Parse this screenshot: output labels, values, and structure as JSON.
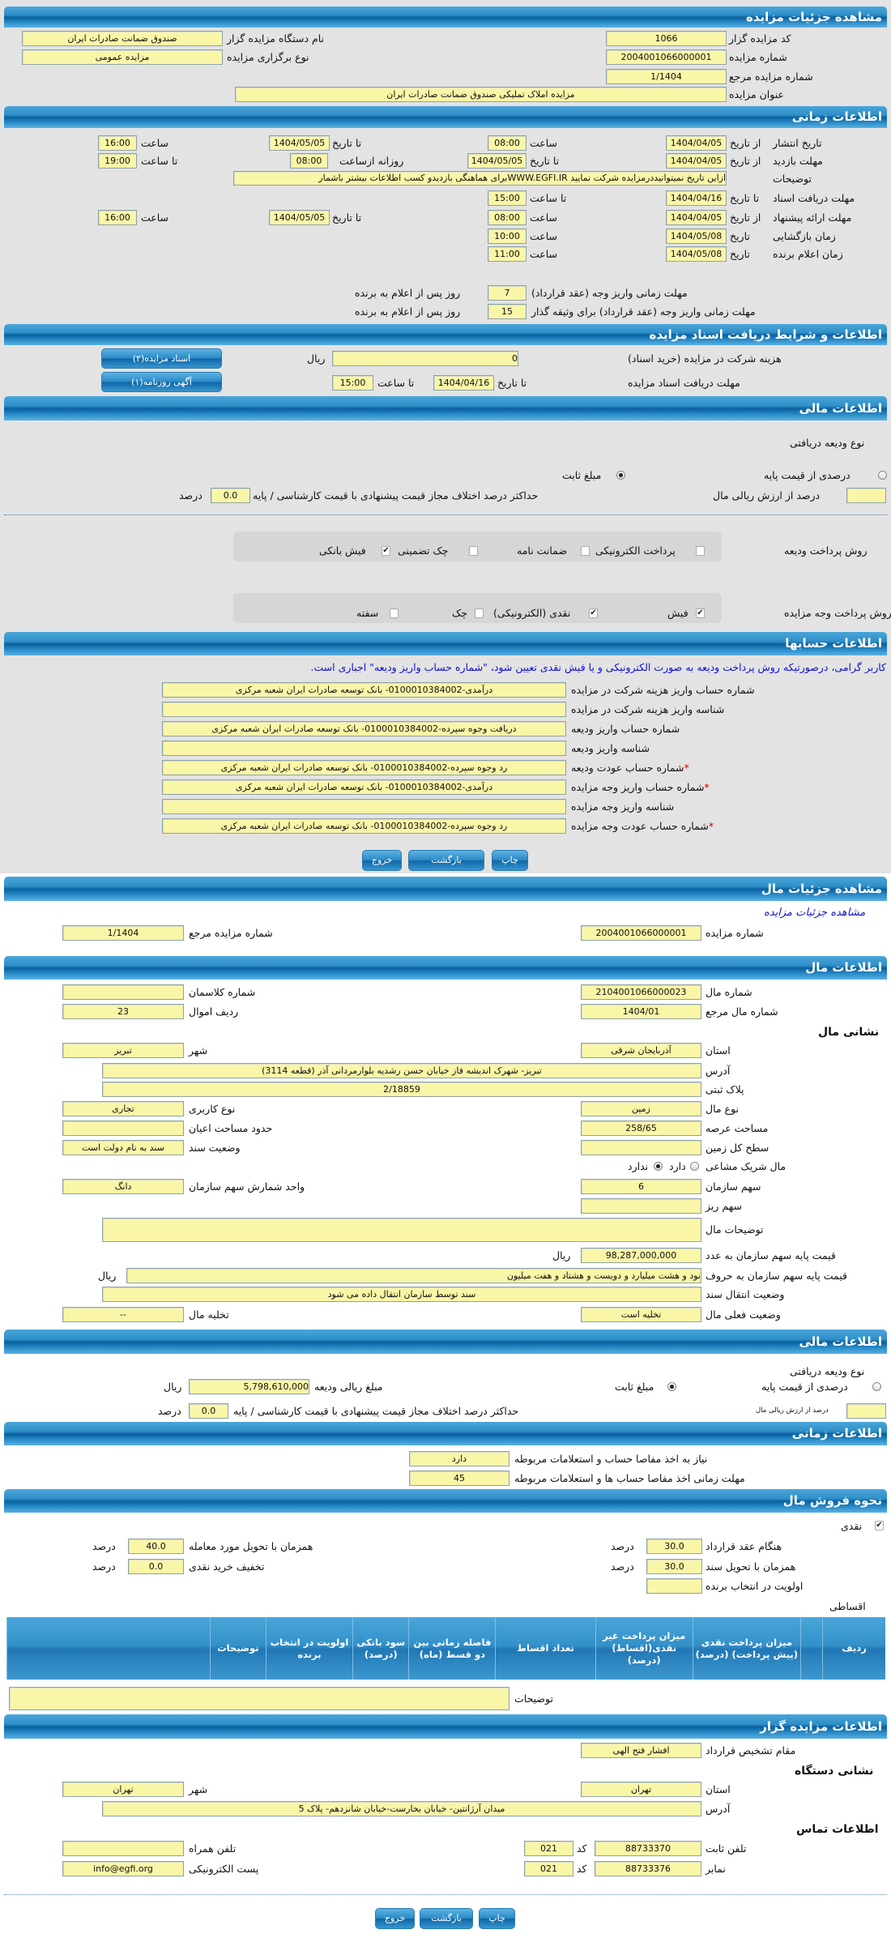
{
  "colors": {
    "header_blue": "#1f7fbf",
    "field_yellow": "#faf6a8",
    "notice_blue": "#1010d0",
    "required_red": "#d00000"
  },
  "auction": {
    "title": "مشاهده جزئیات مزایده",
    "code": {
      "label": "کد مزایده گزار",
      "value": "1066"
    },
    "org_name": {
      "label": "نام دستگاه مزایده گزار",
      "value": "صندوق ضمانت صادرات ایران"
    },
    "number": {
      "label": "شماره مزایده",
      "value": "2004001066000001"
    },
    "type": {
      "label": "نوع برگزاری مزایده",
      "value": "مزایده عمومی"
    },
    "ref_number": {
      "label": "شماره مزایده مرجع",
      "value": "1/1404"
    },
    "subject": {
      "label": "عنوان مزایده",
      "value": "مزایده املاک تملیکی صندوق ضمانت صادرات ایران"
    }
  },
  "timing": {
    "title": "اطلاعات زمانی",
    "words": {
      "from_date": "از تاریخ",
      "to_date": "تا تاریخ",
      "time": "ساعت",
      "to_time": "تا ساعت",
      "date": "تاریخ",
      "daily_from": "روزانه ازساعت"
    },
    "publish": {
      "label": "تاریخ انتشار",
      "from": "1404/04/05",
      "from_time": "08:00",
      "to": "1404/05/05",
      "to_time": "16:00"
    },
    "visit": {
      "label": "مهلت بازدید",
      "from": "1404/04/05",
      "to": "1404/05/05",
      "daily_from": "08:00",
      "to_time": "19:00"
    },
    "notes": {
      "label": "توضیحات",
      "value": "ازاین تاریخ نمیتوانیددرمزایده شرکت نمایید WWW.EGFI.IRبرای هماهنگی بازدیدو کسب اطلاعات بیشتر باشمار"
    },
    "docs": {
      "label": "مهلت دریافت اسناد",
      "to": "1404/04/16",
      "to_time": "15:00"
    },
    "offer": {
      "label": "مهلت ارائه پیشنهاد",
      "from": "1404/04/05",
      "from_time": "08:00",
      "to": "1404/05/05",
      "to_time": "16:00"
    },
    "opening": {
      "label": "زمان بازگشایی",
      "date": "1404/05/08",
      "time": "10:00"
    },
    "winner": {
      "label": "زمان اعلام برنده",
      "date": "1404/05/08",
      "time": "11:00"
    },
    "pay_deadline": {
      "label": "مهلت زمانی واریز وجه (عقد قرارداد)",
      "value": "7",
      "suffix": "روز پس از اعلام به برنده"
    },
    "pay_deadline_collateral": {
      "label": "مهلت زمانی واریز وجه (عقد قرارداد) برای وثیقه گذار",
      "value": "15",
      "suffix": "روز پس از اعلام به برنده"
    }
  },
  "docs_terms": {
    "title": "اطلاعات و شرایط دریافت اسناد مزایده",
    "fee": {
      "label": "هزینه شرکت در مزایده (خرید اسناد)",
      "value": "0",
      "unit": "ریال"
    },
    "deadline": {
      "label": "مهلت دریافت اسناد مزایده",
      "to_date_label": "تا تاریخ",
      "to_date": "1404/04/16",
      "to_time_label": "تا ساعت",
      "to_time": "15:00"
    },
    "docs_button": "اسناد مزایده(۲)",
    "ad_button": "آگهی روزنامه(۱)"
  },
  "finance": {
    "title": "اطلاعات مالی",
    "deposit_type_label": "نوع ودیعه دریافتی",
    "percent_option": {
      "label": "درصدی از قیمت پایه",
      "selected": false
    },
    "fixed_option": {
      "label": "مبلغ ثابت",
      "selected": true
    },
    "percent_of_value": {
      "label": "درصد از ارزش ریالی مال",
      "value": ""
    },
    "max_diff": {
      "label": "حداکثر درصد اختلاف مجاز قیمت پیشنهادی با قیمت کارشناسی / پایه",
      "value": "0.0",
      "unit": "درصد"
    },
    "deposit_method": {
      "label": "روش پرداخت ودیعه",
      "options": [
        {
          "label": "پرداخت الکترونیکی",
          "checked": false
        },
        {
          "label": "ضمانت نامه",
          "checked": false
        },
        {
          "label": "چک تضمینی",
          "checked": false
        },
        {
          "label": "فیش بانکی",
          "checked": true
        }
      ]
    },
    "payment_method": {
      "label": "روش پرداخت وجه مزایده",
      "options": [
        {
          "label": "فیش",
          "checked": true
        },
        {
          "label": "نقدی (الکترونیکی)",
          "checked": true
        },
        {
          "label": "چک",
          "checked": false
        },
        {
          "label": "سفته",
          "checked": false
        }
      ]
    }
  },
  "accounts": {
    "title": "اطلاعات حسابها",
    "notice": "کاربر گرامی، درصورتیکه روش پرداخت ودیعه به صورت الکترونیکی و یا فیش نقدی تعیین شود، \"شماره حساب واریز ودیعه\" اجباری است.",
    "rows": [
      {
        "label": "شماره حساب واریز هزینه شرکت در مزایده",
        "value": "درآمدی-0100010384002- بانک توسعه صادرات ایران شعبه مرکزی",
        "required": false
      },
      {
        "label": "شناسه واریز هزینه شرکت در مزایده",
        "value": "",
        "required": false
      },
      {
        "label": "شماره حساب واریز ودیعه",
        "value": "دریافت وجوه سپرده-0100010384002- بانک توسعه صادرات ایران شعبه مرکزی",
        "required": false
      },
      {
        "label": "شناسه واریز ودیعه",
        "value": "",
        "required": false
      },
      {
        "label": "شماره حساب عودت ودیعه",
        "value": "رد وجوه سپرده-0100010384002- بانک توسعه صادرات ایران شعبه مرکزی",
        "required": true
      },
      {
        "label": "شماره حساب واریز وجه مزایده",
        "value": "درآمدی-0100010384002- بانک توسعه صادرات ایران شعبه مرکزی",
        "required": true
      },
      {
        "label": "شناسه واریز وجه مزایده",
        "value": "",
        "required": false
      },
      {
        "label": "شماره حساب عودت وجه مزایده",
        "value": "رد وجوه سپرده-0100010384002- بانک توسعه صادرات ایران شعبه مرکزی",
        "required": true
      }
    ],
    "required_mark": "*"
  },
  "buttons": {
    "print": "چاپ",
    "back": "بازگشت",
    "exit": "خروج"
  },
  "property": {
    "title": "مشاهده جزئیات مال",
    "auction_link": "مشاهده جزئیات مزایده",
    "auction_number": {
      "label": "شماره مزایده",
      "value": "2004001066000001"
    },
    "auction_ref": {
      "label": "شماره مزایده مرجع",
      "value": "1/1404"
    },
    "info_title": "اطلاعات مال",
    "number": {
      "label": "شماره مال",
      "value": "2104001066000023"
    },
    "classman": {
      "label": "شماره کلاسمان",
      "value": ""
    },
    "ref": {
      "label": "شماره مال مرجع",
      "value": "1404/01"
    },
    "row_no": {
      "label": "ردیف اموال",
      "value": "23"
    },
    "address_heading": "نشانی مال",
    "province": {
      "label": "استان",
      "value": "آذربایجان شرقی"
    },
    "city": {
      "label": "شهر",
      "value": "تبریز"
    },
    "address": {
      "label": "آدرس",
      "value": "تبریز- شهرک اندیشه فاز خیابان حسن رشدیه بلوارمردانی آذر (قطعه 3114)"
    },
    "plaque": {
      "label": "پلاک ثبتی",
      "value": "2/18859"
    },
    "type": {
      "label": "نوع مال",
      "value": "زمین"
    },
    "usage": {
      "label": "نوع کاربری",
      "value": "تجاری"
    },
    "area": {
      "label": "مساحت عرصه",
      "value": "258/65"
    },
    "building_area": {
      "label": "حدود مساحت اعیان",
      "value": ""
    },
    "land_area": {
      "label": "سطح کل زمین",
      "value": ""
    },
    "deed_status": {
      "label": "وضعیت سند",
      "value": "سند به نام دولت است"
    },
    "shared": {
      "label": "مال شریک مشاعی",
      "yes": "دارد",
      "no": "ندارد",
      "selected": "ندارد"
    },
    "share": {
      "label": "سهم سازمان",
      "value": "6"
    },
    "share_unit": {
      "label": "واحد شمارش سهم سازمان",
      "value": "دانگ"
    },
    "micro_share": {
      "label": "سهم ریز",
      "value": ""
    },
    "description": {
      "label": "توضیحات مال",
      "value": ""
    },
    "base_price": {
      "label": "قیمت پایه سهم سازمان به عدد",
      "value": "98,287,000,000",
      "unit": "ریال"
    },
    "base_price_words": {
      "label": "قیمت پایه سهم سازمان به حروف",
      "value": "نود و هشت میلیارد و دویست و هشتاد و هفت میلیون",
      "unit": "ریال"
    },
    "deed_transfer": {
      "label": "وضعیت انتقال سند",
      "value": "سند توسط سازمان انتقال داده می شود"
    },
    "current_status": {
      "label": "وضعیت فعلی مال",
      "value": "تخلیه است"
    },
    "evacuation": {
      "label": "تخلیه مال",
      "value": "--"
    }
  },
  "property_finance": {
    "title": "اطلاعات مالی",
    "deposit_type_label": "نوع ودیعه دریافتی",
    "percent_option": {
      "label": "درصدی از قیمت پایه",
      "selected": false
    },
    "fixed_option": {
      "label": "مبلغ ثابت",
      "selected": true
    },
    "deposit_amount": {
      "label": "مبلغ ریالی ودیعه",
      "value": "5,798,610,000",
      "unit": "ریال"
    },
    "percent_of_value": {
      "label": "درصد از ارزش ریالی مال",
      "value": ""
    },
    "max_diff": {
      "label": "حداکثر درصد اختلاف مجاز قیمت پیشنهادی با قیمت کارشناسی / پایه",
      "value": "0.0",
      "unit": "درصد"
    }
  },
  "property_timing": {
    "title": "اطلاعات زمانی",
    "clearance": {
      "label": "نیاز به اخذ مفاصا حساب و استعلامات مربوطه",
      "value": "دارد"
    },
    "clearance_deadline": {
      "label": "مهلت زمانی اخذ مفاصا حساب ها و استعلامات مربوطه",
      "value": "45"
    }
  },
  "sale": {
    "title": "نحوه فروش مال",
    "cash": {
      "label": "نقدی",
      "checked": true
    },
    "percent_unit": "درصد",
    "at_contract": {
      "label": "هنگام عقد قرارداد",
      "value": "30.0"
    },
    "at_deed_delivery": {
      "label": "همزمان با تحویل سند",
      "value": "30.0"
    },
    "at_item_delivery": {
      "label": "همزمان با تحویل مورد معامله",
      "value": "40.0"
    },
    "cash_discount": {
      "label": "تخفیف خرید نقدی",
      "value": "0.0"
    },
    "winner_priority": {
      "label": "اولویت در انتخاب برنده",
      "value": ""
    },
    "installments_label": "اقساطی",
    "table_columns": [
      "ردیف",
      "",
      "میزان پرداخت نقدی (پیش پرداخت) (درصد)",
      "میزان پرداخت غیر نقدی(اقساط) (درصد)",
      "تعداد اقساط",
      "فاصله زمانی بین دو قسط (ماه)",
      "سود بانکی (درصد)",
      "اولویت در انتخاب برنده",
      "توضیحات",
      ""
    ],
    "notes": {
      "label": "توضیحات",
      "value": ""
    }
  },
  "contractor": {
    "title": "اطلاعات مزایده گزار",
    "authority": {
      "label": "مقام تشخیص قرارداد",
      "value": "افشار فتح الهی"
    },
    "address_heading": "نشانی دستگاه",
    "province": {
      "label": "استان",
      "value": "تهران"
    },
    "city": {
      "label": "شهر",
      "value": "تهران"
    },
    "address": {
      "label": "آدرس",
      "value": "میدان آرژانتین- خیابان بخارست-خیابان شانزدهم- پلاک 5"
    },
    "contact_heading": "اطلاعات تماس",
    "code_label": "کد",
    "phone": {
      "label": "تلفن ثابت",
      "value": "88733370",
      "code": "021"
    },
    "fax": {
      "label": "نمابر",
      "value": "88733376",
      "code": "021"
    },
    "mobile": {
      "label": "تلفن همراه",
      "value": ""
    },
    "email": {
      "label": "پست الکترونیکی",
      "value": "info@egfi.org"
    }
  }
}
